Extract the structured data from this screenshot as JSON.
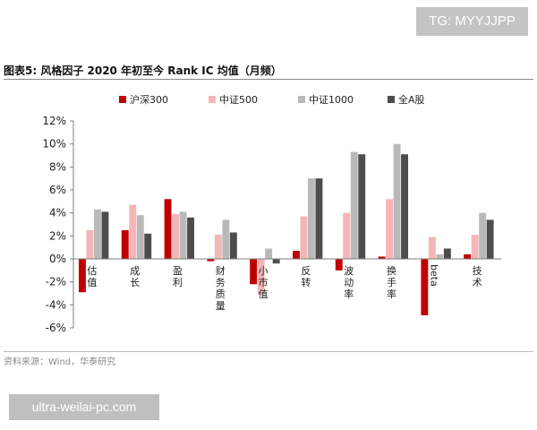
{
  "watermark_top": "TG: MYYJJPP",
  "watermark_bottom": "ultra-weilai-pc.com",
  "figure_title": "图表5:  风格因子 2020 年初至今 Rank IC 均值（月频）",
  "source": "资料来源：Wind，华泰研究",
  "colors": {
    "series": [
      "#c00000",
      "#f4b6b7",
      "#b9b9b9",
      "#4d4d4d"
    ],
    "axis": "#7f7f7f"
  },
  "chart_data": {
    "type": "bar",
    "title": "风格因子 2020 年初至今 Rank IC 均值（月频）",
    "categories": [
      "估值",
      "成长",
      "盈利",
      "财务质量",
      "小市值",
      "反转",
      "波动率",
      "换手率",
      "beta",
      "技术"
    ],
    "series": [
      {
        "name": "沪深300",
        "values": [
          -2.9,
          2.5,
          5.2,
          -0.2,
          -2.2,
          0.7,
          -1.0,
          0.2,
          -4.9,
          0.4
        ]
      },
      {
        "name": "中证500",
        "values": [
          2.5,
          4.7,
          3.9,
          2.1,
          -3.1,
          3.7,
          4.0,
          5.2,
          1.9,
          2.1
        ]
      },
      {
        "name": "中证1000",
        "values": [
          4.3,
          3.8,
          4.1,
          3.4,
          0.9,
          7.0,
          9.3,
          10.0,
          0.4,
          4.0
        ]
      },
      {
        "name": "全A股",
        "values": [
          4.1,
          2.2,
          3.6,
          2.3,
          -0.4,
          7.0,
          9.1,
          9.1,
          0.9,
          3.4
        ]
      }
    ],
    "yticks": [
      "12%",
      "10%",
      "8%",
      "6%",
      "4%",
      "2%",
      "0%",
      "-2%",
      "-4%",
      "-6%"
    ],
    "ylim": [
      -6,
      12
    ],
    "legend_position": "top",
    "grid": false
  }
}
